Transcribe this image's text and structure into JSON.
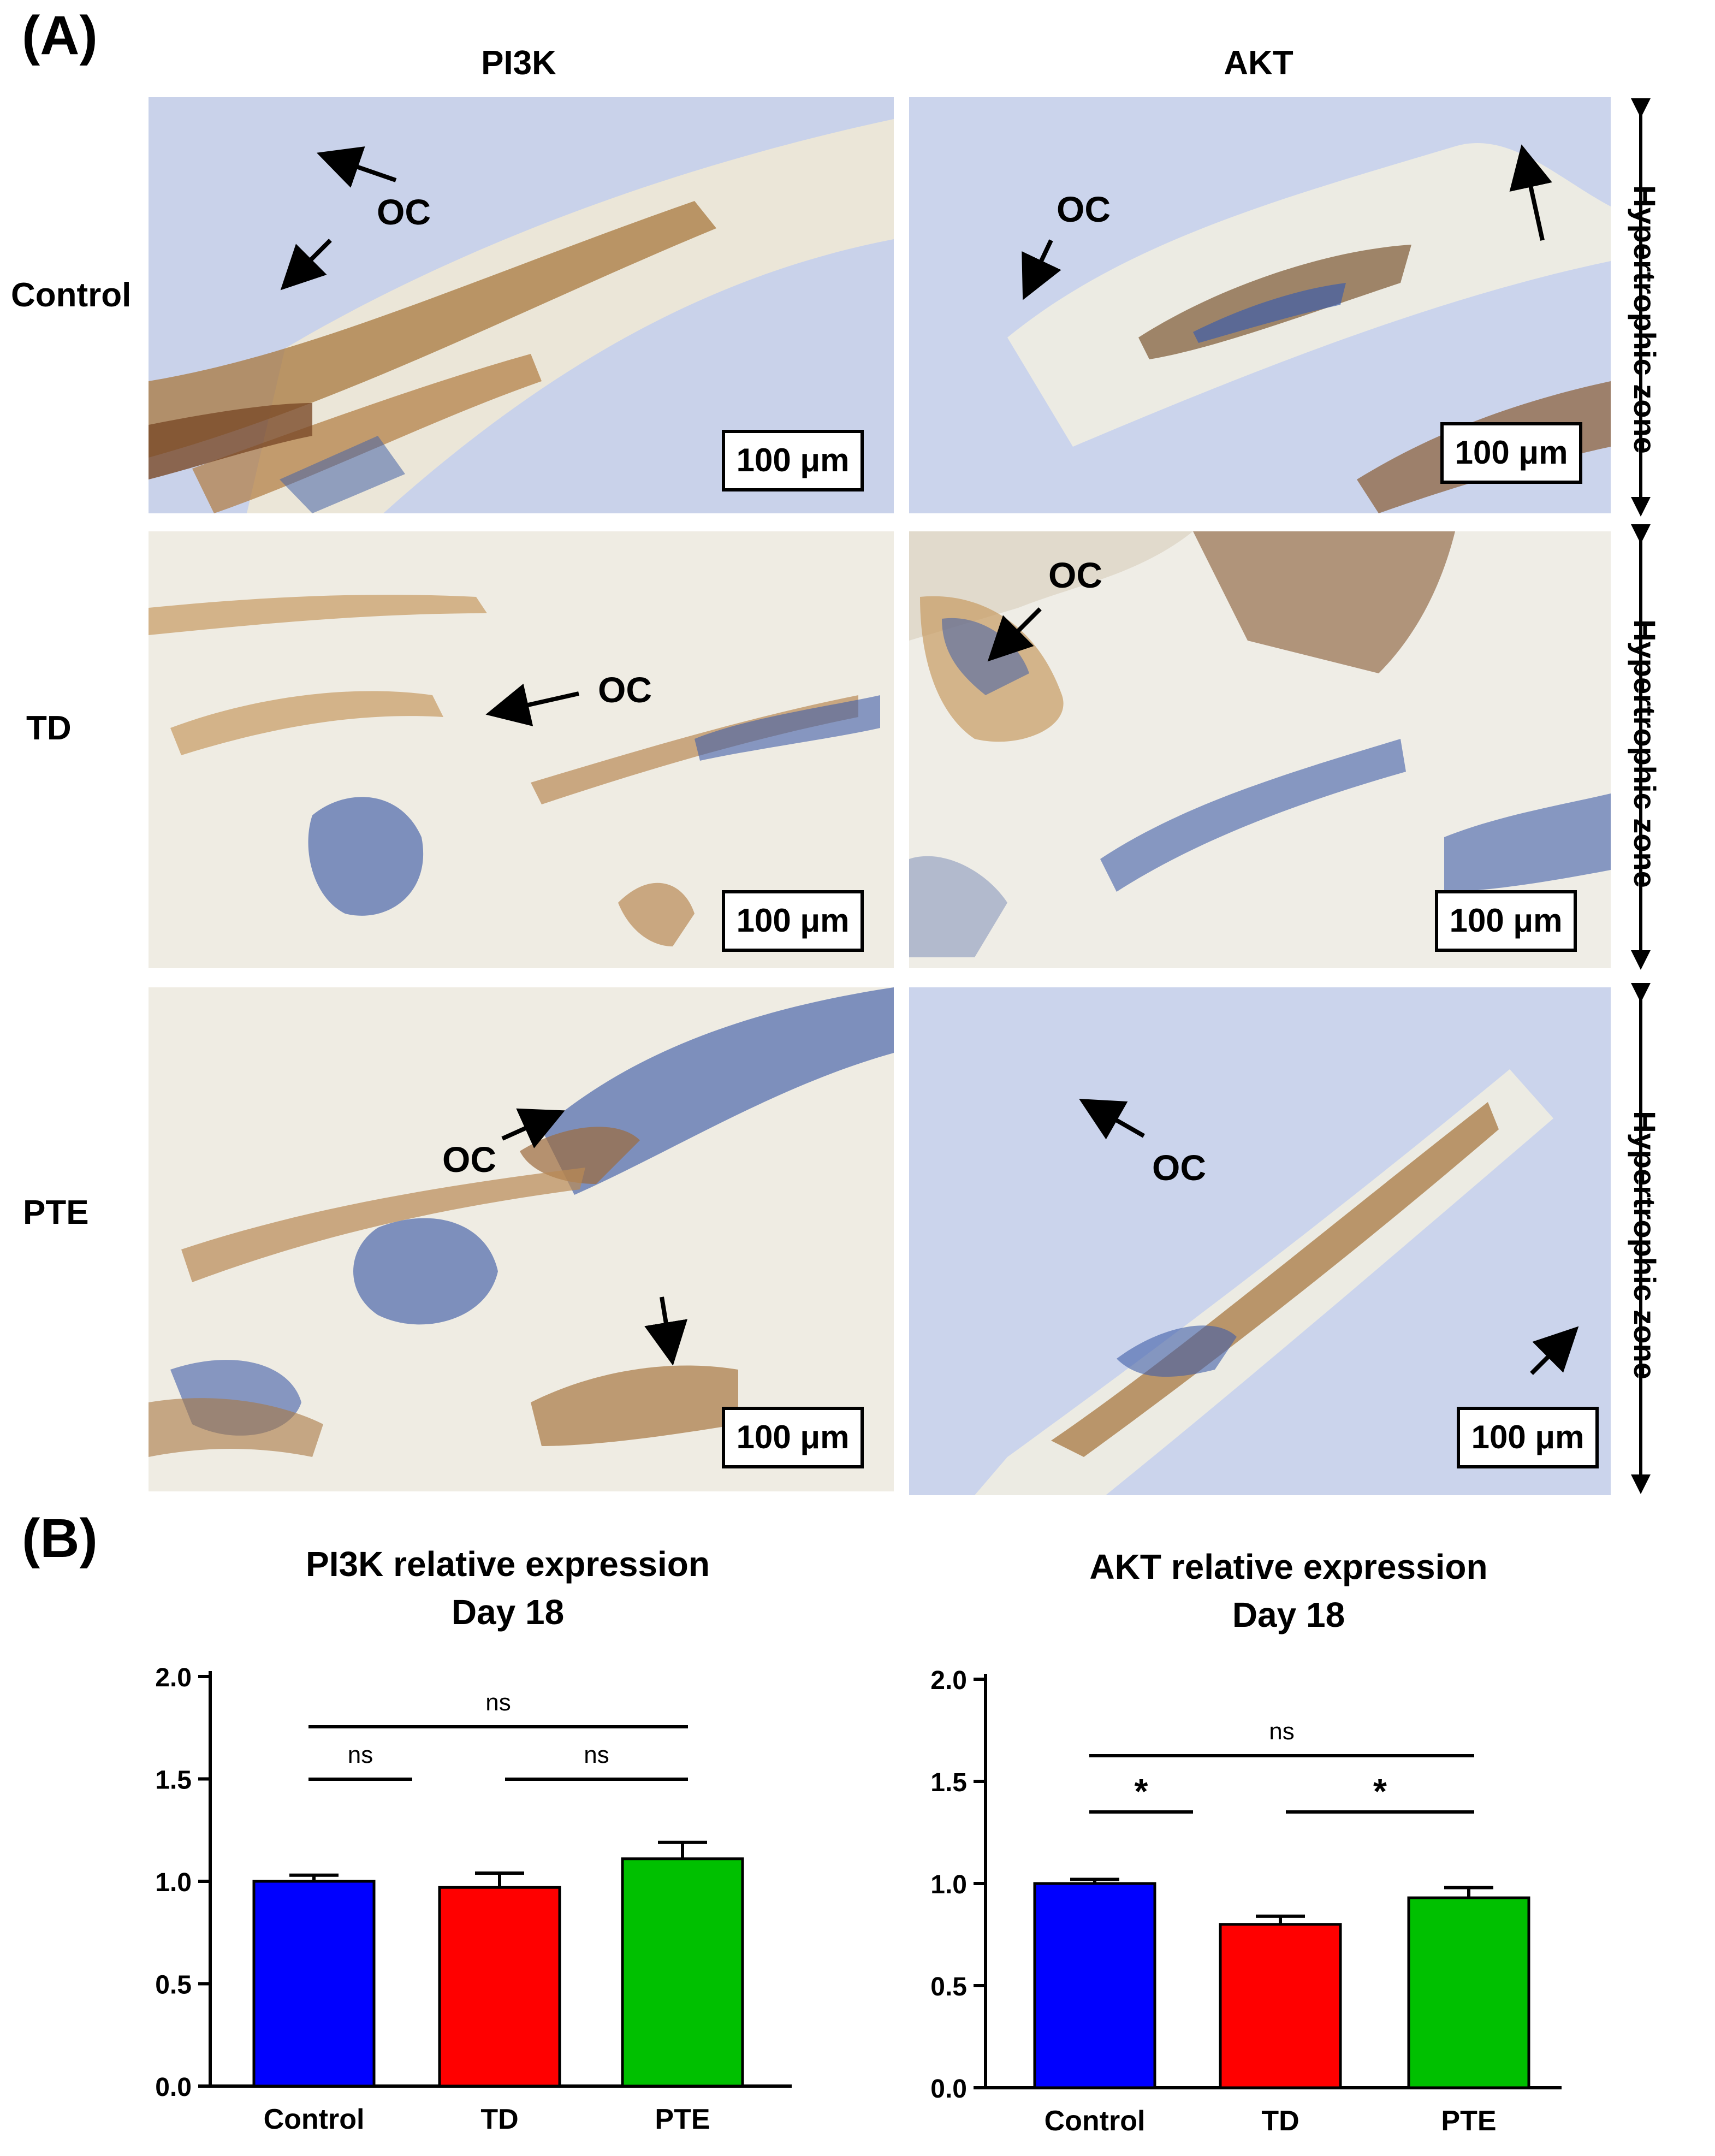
{
  "panel_a": {
    "letter": "(A)",
    "columns": [
      "PI3K",
      "AKT"
    ],
    "rows": [
      "Control",
      "TD",
      "PTE"
    ],
    "scale_label": "100 μm",
    "oc_label": "OC",
    "zone_label": "Hypertrophic zone"
  },
  "panel_b": {
    "letter": "(B)"
  },
  "chart_data": [
    {
      "type": "bar",
      "title": "PI3K relative expression",
      "subtitle": "Day 18",
      "categories": [
        "Control",
        "TD",
        "PTE"
      ],
      "values": [
        1.0,
        0.97,
        1.11
      ],
      "errors": [
        0.03,
        0.07,
        0.08
      ],
      "colors": [
        "#0000ff",
        "#ff0000",
        "#00c000"
      ],
      "ylim": [
        0,
        2.0
      ],
      "yticks": [
        "0.0",
        "0.5",
        "1.0",
        "1.5",
        "2.0"
      ],
      "significance": [
        {
          "from": 0,
          "to": 2,
          "label": "ns"
        },
        {
          "from": 0,
          "to": 1,
          "label": "ns"
        },
        {
          "from": 1,
          "to": 2,
          "label": "ns"
        }
      ]
    },
    {
      "type": "bar",
      "title": "AKT relative expression",
      "subtitle": "Day 18",
      "categories": [
        "Control",
        "TD",
        "PTE"
      ],
      "values": [
        1.0,
        0.8,
        0.93
      ],
      "errors": [
        0.02,
        0.04,
        0.05
      ],
      "colors": [
        "#0000ff",
        "#ff0000",
        "#00c000"
      ],
      "ylim": [
        0,
        2.0
      ],
      "yticks": [
        "0.0",
        "0.5",
        "1.0",
        "1.5",
        "2.0"
      ],
      "significance": [
        {
          "from": 0,
          "to": 2,
          "label": "ns"
        },
        {
          "from": 0,
          "to": 1,
          "label": "*"
        },
        {
          "from": 1,
          "to": 2,
          "label": "*"
        }
      ]
    }
  ]
}
